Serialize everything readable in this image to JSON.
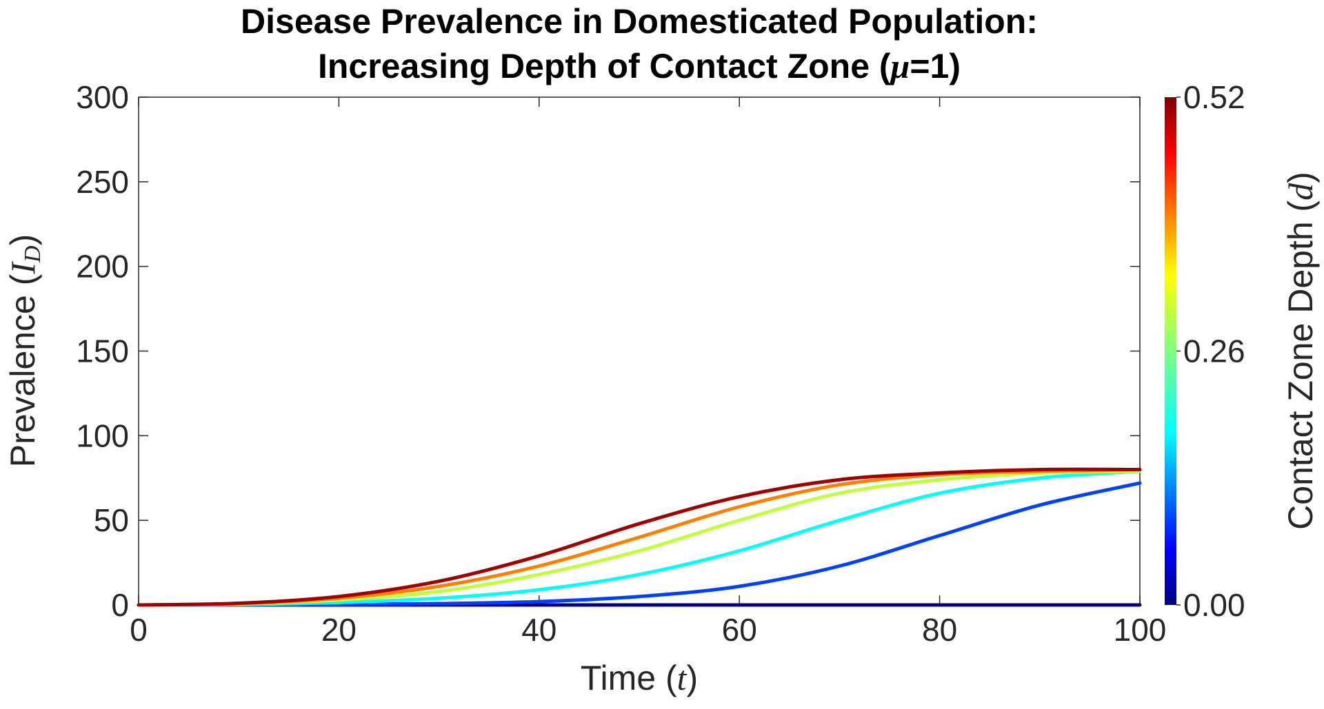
{
  "chart_data": {
    "type": "line",
    "title_line1": "Disease Prevalence in Domesticated Population:",
    "title_line2_prefix": "Increasing Depth of Contact Zone (",
    "title_line2_symbol": "μ",
    "title_line2_suffix": "=1)",
    "xlabel_prefix": "Time (",
    "xlabel_var": "t",
    "xlabel_suffix": ")",
    "ylabel_prefix": "Prevalence (",
    "ylabel_var": "I",
    "ylabel_sub": "D",
    "ylabel_suffix": ")",
    "xlim": [
      0,
      100
    ],
    "ylim": [
      0,
      300
    ],
    "xticks": [
      0,
      20,
      40,
      60,
      80,
      100
    ],
    "yticks": [
      0,
      50,
      100,
      150,
      200,
      250,
      300
    ],
    "grid": false,
    "colorbar": {
      "label_prefix": "Contact Zone Depth (",
      "label_var": "d",
      "label_suffix": ")",
      "range": [
        0,
        0.52
      ],
      "ticks": [
        "0.00",
        "0.26",
        "0.52"
      ],
      "placement": "right",
      "colormap": "jet"
    },
    "x": [
      0,
      10,
      20,
      30,
      40,
      50,
      60,
      70,
      80,
      90,
      100
    ],
    "series": [
      {
        "name": "d = 0.00",
        "d": 0.0,
        "color": "#000080",
        "values": [
          0,
          0,
          0,
          0,
          0,
          0,
          0,
          0,
          0,
          0,
          0
        ]
      },
      {
        "name": "d = 0.104",
        "d": 0.104,
        "color": "#0040ff",
        "values": [
          0,
          0.1,
          0.3,
          0.8,
          2,
          5,
          11,
          23,
          41,
          59,
          72
        ]
      },
      {
        "name": "d = 0.208",
        "d": 0.208,
        "color": "#00ffff",
        "values": [
          0,
          0.3,
          1.5,
          4,
          9,
          18,
          32,
          50,
          66,
          75,
          79
        ]
      },
      {
        "name": "d = 0.312",
        "d": 0.312,
        "color": "#c0ff40",
        "values": [
          0,
          0.6,
          3,
          8,
          18,
          32,
          50,
          66,
          74,
          78,
          79
        ]
      },
      {
        "name": "d = 0.416",
        "d": 0.416,
        "color": "#ff8000",
        "values": [
          0,
          0.8,
          4,
          11,
          23,
          40,
          58,
          71,
          77,
          79,
          80
        ]
      },
      {
        "name": "d = 0.52",
        "d": 0.52,
        "color": "#a00000",
        "values": [
          0,
          1,
          5,
          14,
          29,
          48,
          64,
          74,
          78,
          80,
          80
        ]
      }
    ]
  }
}
